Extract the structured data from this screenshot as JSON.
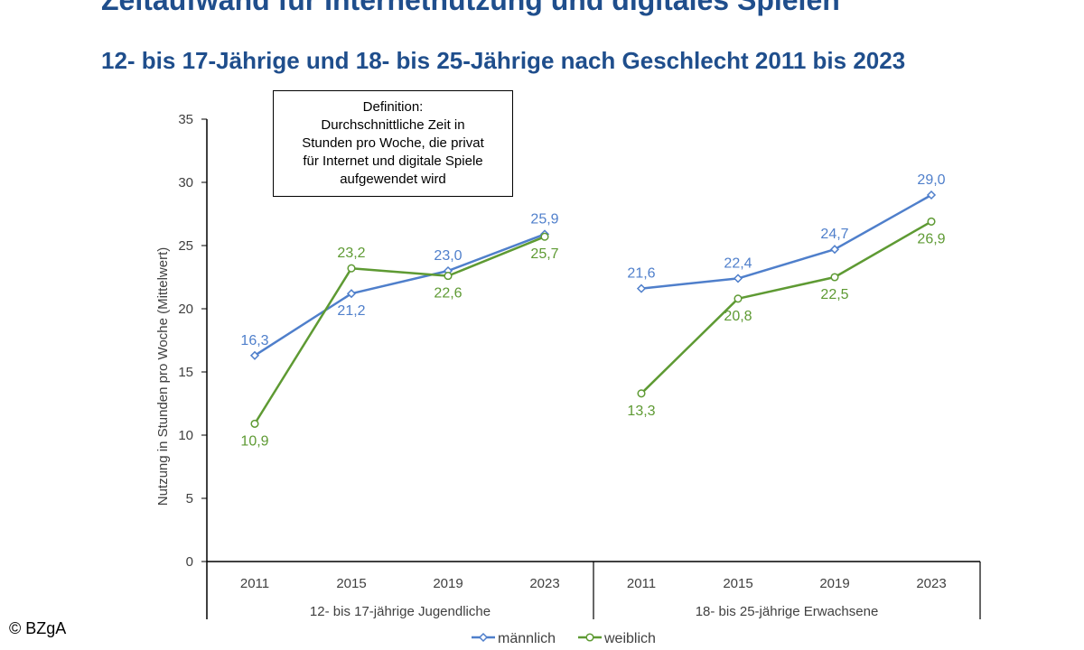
{
  "title": "Zeitaufwand für Internetnutzung und digitales Spielen",
  "subtitle": "12- bis 17-Jährige und 18- bis 25-Jährige nach Geschlecht 2011 bis 2023",
  "definition_box": {
    "lines": [
      "Definition:",
      "Durchschnittliche Zeit in",
      "Stunden pro Woche, die privat",
      "für Internet und digitale Spiele",
      "aufgewendet wird"
    ]
  },
  "copyright": "© BZgA",
  "colors": {
    "maennlich": "#4f7fcb",
    "weiblich": "#5e9a33",
    "axis": "#000000",
    "tick_text": "#404040"
  },
  "chart_data": {
    "type": "line",
    "ylabel": "Nutzung in Stunden pro Woche (Mittelwert)",
    "ylim": [
      0,
      35
    ],
    "yticks": [
      0,
      5,
      10,
      15,
      20,
      25,
      30,
      35
    ],
    "grid": false,
    "legend_position": "bottom-center",
    "legend": [
      "männlich",
      "weiblich"
    ],
    "groups": [
      {
        "label": "12- bis 17-jährige Jugendliche",
        "categories": [
          "2011",
          "2015",
          "2019",
          "2023"
        ],
        "series": [
          {
            "name": "männlich",
            "values": [
              16.3,
              21.2,
              23.0,
              25.9
            ],
            "labels": [
              "16,3",
              "21,2",
              "23,0",
              "25,9"
            ]
          },
          {
            "name": "weiblich",
            "values": [
              10.9,
              23.2,
              22.6,
              25.7
            ],
            "labels": [
              "10,9",
              "23,2",
              "22,6",
              "25,7"
            ]
          }
        ]
      },
      {
        "label": "18- bis 25-jährige Erwachsene",
        "categories": [
          "2011",
          "2015",
          "2019",
          "2023"
        ],
        "series": [
          {
            "name": "männlich",
            "values": [
              21.6,
              22.4,
              24.7,
              29.0
            ],
            "labels": [
              "21,6",
              "22,4",
              "24,7",
              "29,0"
            ]
          },
          {
            "name": "weiblich",
            "values": [
              13.3,
              20.8,
              22.5,
              26.9
            ],
            "labels": [
              "13,3",
              "20,8",
              "22,5",
              "26,9"
            ]
          }
        ]
      }
    ]
  }
}
